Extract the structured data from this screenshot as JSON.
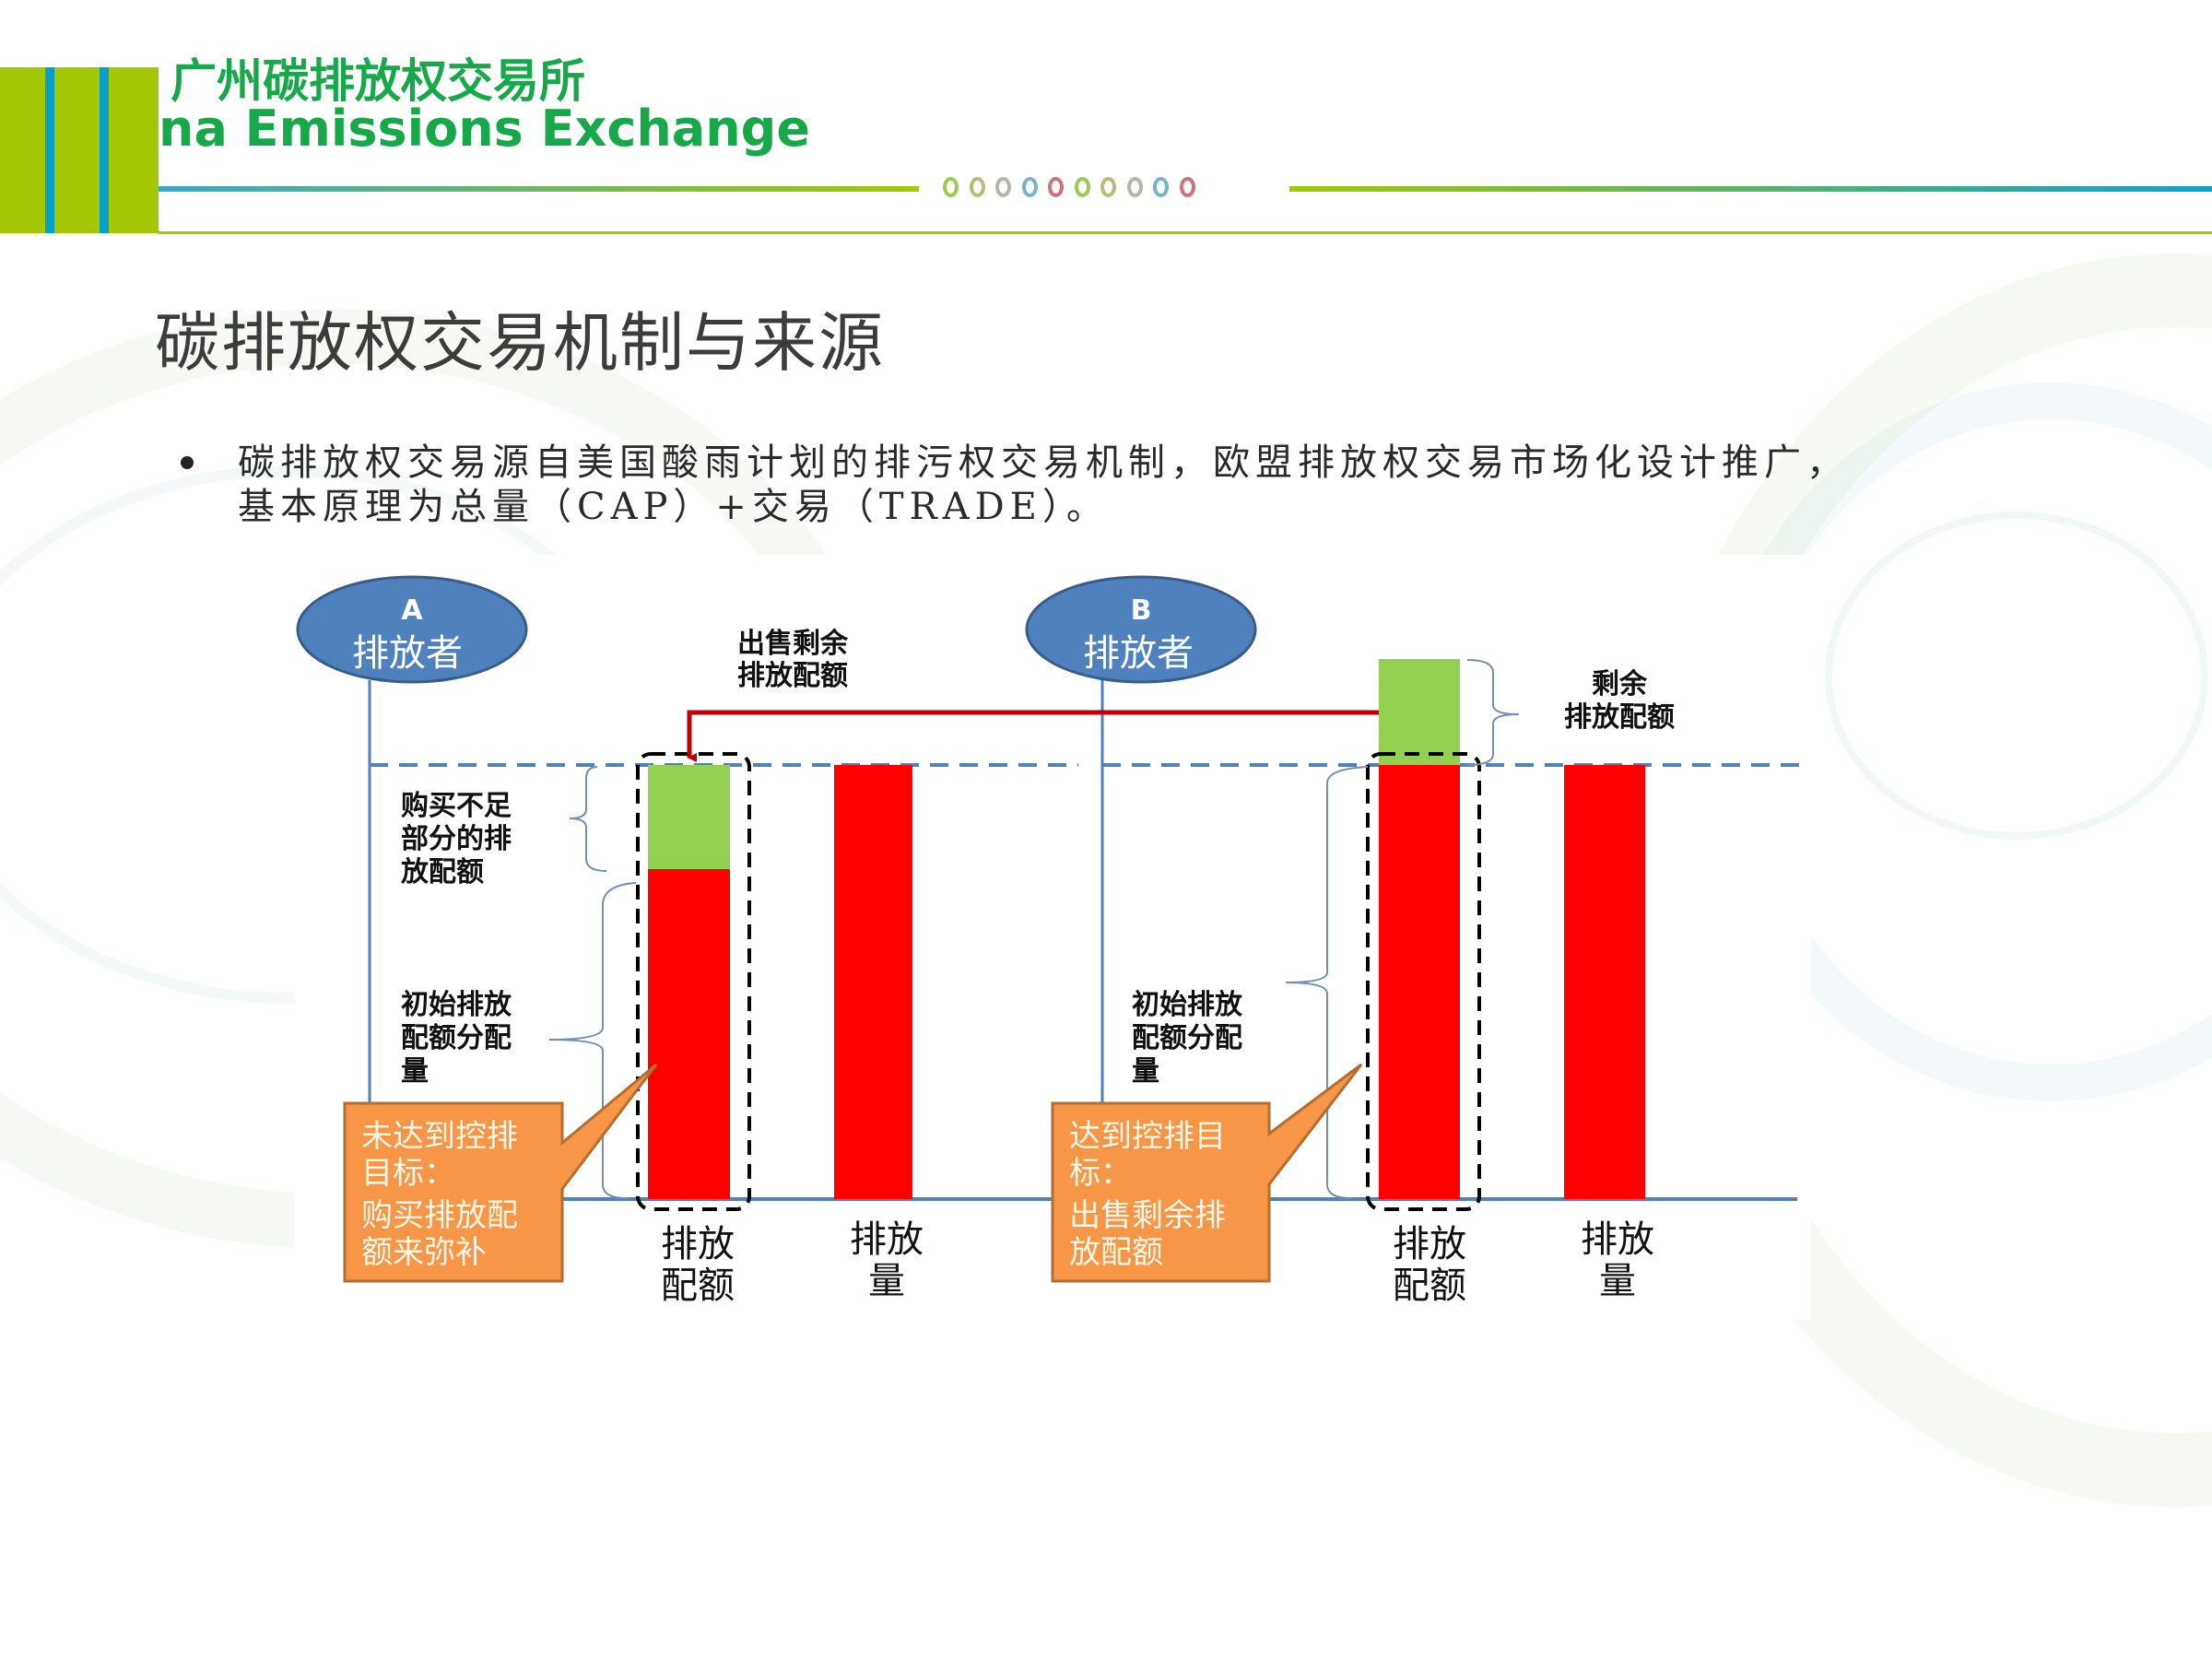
{
  "header": {
    "org_name_cn": "广州碳排放权交易所",
    "org_name_en": "na Emissions Exchange",
    "colors": {
      "brand_green": "#17a84a",
      "lime": "#a3c803",
      "stripe_blue": "#069fc9"
    },
    "decor_circles": [
      "#8cc63f",
      "#b4b46a",
      "#a8b0a0",
      "#6aaac8",
      "#c8646a",
      "#8cc63f",
      "#b4b46a",
      "#a8b0a0",
      "#6aaac8",
      "#c8646a"
    ]
  },
  "slide": {
    "title": "碳排放权交易机制与来源",
    "bullets": [
      {
        "line1": "碳排放权交易源自美国酸雨计划的排污权交易机制，欧盟排放权交易市场化设计推广，",
        "line2": "基本原理为总量（CAP）+交易（TRADE）。"
      }
    ]
  },
  "diagram": {
    "emitter_a": {
      "letter": "A",
      "label": "排放者"
    },
    "emitter_b": {
      "letter": "B",
      "label": "排放者"
    },
    "transfer_label": {
      "line1": "出售剩余",
      "line2": "排放配额"
    },
    "a_top_brace_label": {
      "line1": "购买不足",
      "line2": "部分的排",
      "line3": "放配额"
    },
    "a_initial_label": {
      "line1": "初始排放",
      "line2": "配额分配",
      "line3": "量"
    },
    "b_initial_label": {
      "line1": "初始排放",
      "line2": "配额分配",
      "line3": "量"
    },
    "b_surplus_label": {
      "line1": "剩余",
      "line2": "排放配额"
    },
    "callout_a": {
      "line1": "未达到控排",
      "line2": "目标：",
      "line3": "购买排放配",
      "line4": "额来弥补"
    },
    "callout_b": {
      "line1": "达到控排目",
      "line2": "标：",
      "line3": "出售剩余排",
      "line4": "放配额"
    },
    "axis_labels": {
      "a_allowance": {
        "line1": "排放",
        "line2": "配额"
      },
      "a_emission": {
        "line1": "排放",
        "line2": "量"
      },
      "b_allowance": {
        "line1": "排放",
        "line2": "配额"
      },
      "b_emission": {
        "line1": "排放",
        "line2": "量"
      }
    },
    "colors": {
      "ellipse_fill": "#4f81bd",
      "bar_red": "#ff0000",
      "bar_green": "#92d050",
      "arrow": "#c00000",
      "callout_fill": "#f79646",
      "cap_line": "#4f81bd"
    },
    "bars": {
      "cap_level": 100,
      "a_allowance": {
        "initial": 75,
        "purchased": 25
      },
      "a_emission": 100,
      "b_allowance": {
        "initial": 100,
        "surplus": 25
      },
      "b_emission": 100
    }
  }
}
